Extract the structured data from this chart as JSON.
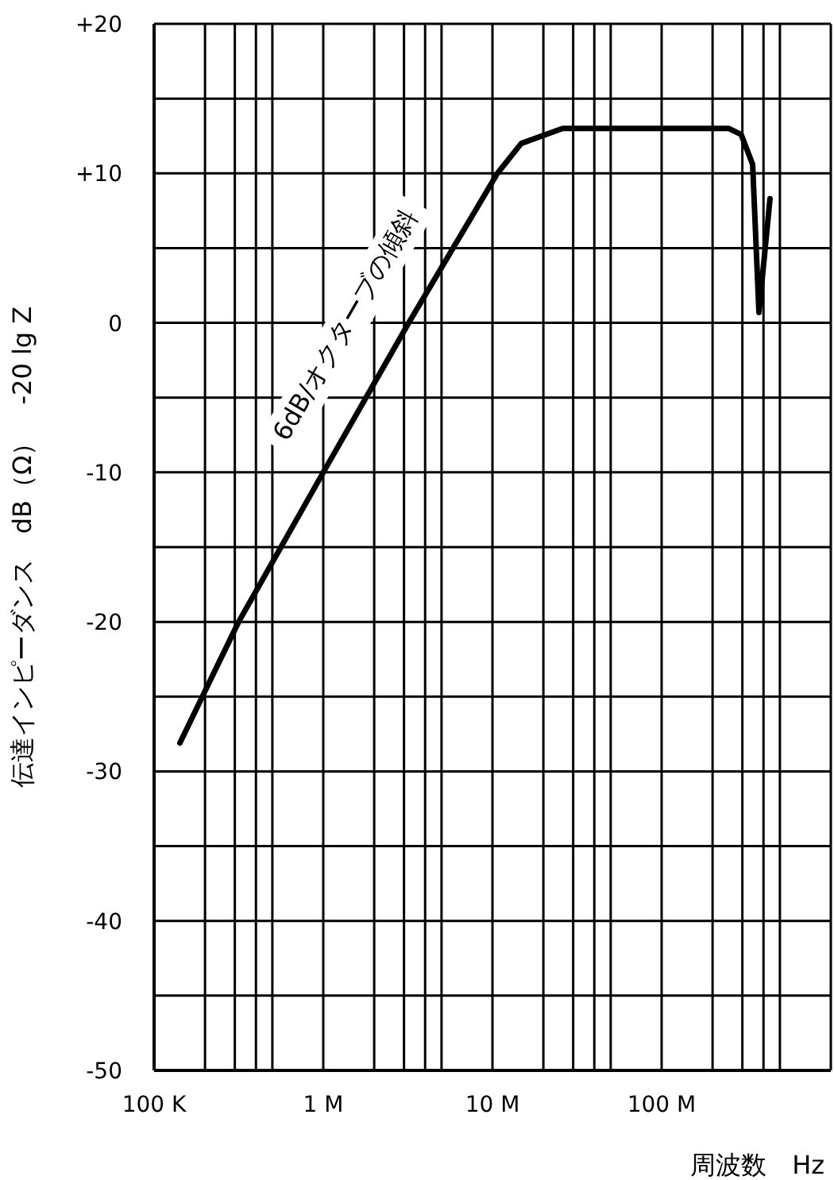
{
  "chart_data": {
    "type": "line",
    "xlabel": "周波数　Hz",
    "ylabel": "伝達インピーダンス　dB（Ω）　-20 lg Z",
    "log": "x",
    "annotations": [
      "6dB/オクターブの傾斜"
    ],
    "series": [
      {
        "color": "#000000",
        "x": [
          142000,
          316000,
          1000000,
          3200000,
          10700000,
          14800000,
          26000000,
          250000000,
          295000000,
          345000000,
          376000000,
          437000000
        ],
        "values": [
          -28.1,
          -20,
          -10,
          0,
          10,
          12,
          13,
          13,
          12.6,
          10.6,
          0.7,
          8.3
        ]
      }
    ],
    "xlim": [
      100000,
      1000000000
    ],
    "xticks": [
      {
        "value": 100000,
        "label": "100 K"
      },
      {
        "value": 200000,
        "label": null
      },
      {
        "value": 300000,
        "label": null
      },
      {
        "value": 400000,
        "label": null
      },
      {
        "value": 500000,
        "label": null
      },
      {
        "value": 1000000,
        "label": "1 M"
      },
      {
        "value": 2000000,
        "label": null
      },
      {
        "value": 3000000,
        "label": null
      },
      {
        "value": 4000000,
        "label": null
      },
      {
        "value": 5000000,
        "label": null
      },
      {
        "value": 10000000,
        "label": "10 M"
      },
      {
        "value": 20000000,
        "label": null
      },
      {
        "value": 30000000,
        "label": null
      },
      {
        "value": 40000000,
        "label": null
      },
      {
        "value": 50000000,
        "label": null
      },
      {
        "value": 100000000,
        "label": "100 M"
      },
      {
        "value": 200000000,
        "label": null
      },
      {
        "value": 300000000,
        "label": null
      },
      {
        "value": 400000000,
        "label": null
      },
      {
        "value": 500000000,
        "label": null
      },
      {
        "value": 1000000000,
        "label": null
      }
    ],
    "ylim": [
      -50,
      20
    ],
    "yticks": [
      {
        "value": -50,
        "label": "-50"
      },
      {
        "value": -45,
        "label": null
      },
      {
        "value": -40,
        "label": "-40"
      },
      {
        "value": -35,
        "label": null
      },
      {
        "value": -30,
        "label": "-30"
      },
      {
        "value": -25,
        "label": null
      },
      {
        "value": -20,
        "label": "-20"
      },
      {
        "value": -15,
        "label": null
      },
      {
        "value": -10,
        "label": "-10"
      },
      {
        "value": -5,
        "label": null
      },
      {
        "value": 0,
        "label": "0"
      },
      {
        "value": 5,
        "label": null
      },
      {
        "value": 10,
        "label": "+10"
      },
      {
        "value": 15,
        "label": null
      },
      {
        "value": 20,
        "label": "+20"
      }
    ],
    "grid": true
  }
}
